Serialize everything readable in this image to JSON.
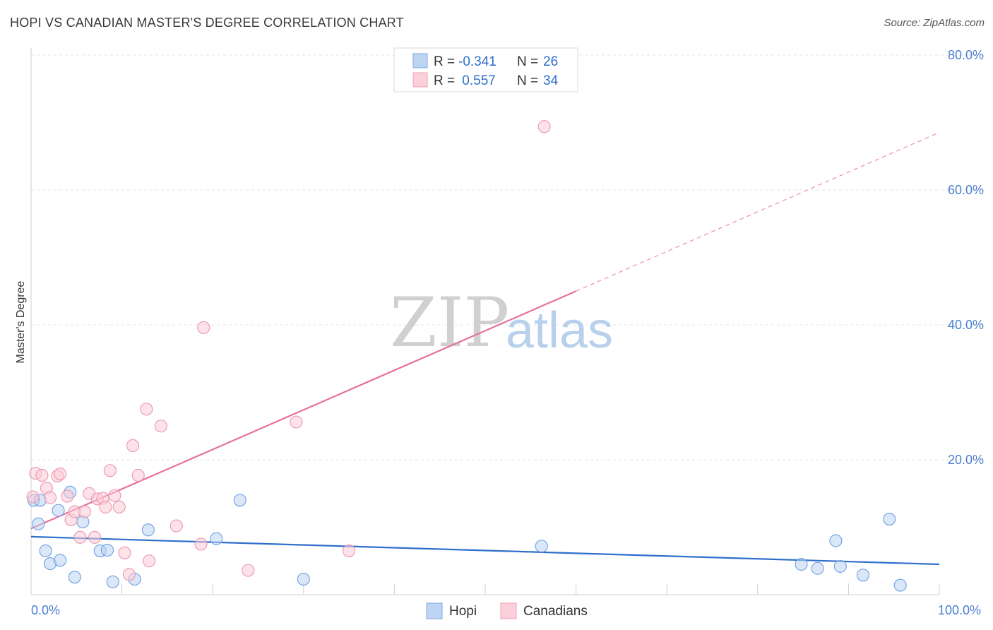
{
  "title": "HOPI VS CANADIAN MASTER'S DEGREE CORRELATION CHART",
  "source": "Source: ZipAtlas.com",
  "watermark": {
    "zip": "ZIP",
    "atlas": "atlas"
  },
  "legend": {
    "rows": [
      {
        "name": "Hopi",
        "r_label": "R =",
        "r_value": "-0.341",
        "n_label": "N =",
        "n_value": "26"
      },
      {
        "name": "Canadians",
        "r_label": "R =",
        "r_value": " 0.557",
        "n_label": "N =",
        "n_value": "34"
      }
    ]
  },
  "chart_data": {
    "type": "scatter",
    "title": "HOPI VS CANADIAN MASTER'S DEGREE CORRELATION CHART",
    "xlabel": "",
    "ylabel": "Master's Degree",
    "xlim": [
      0,
      100
    ],
    "ylim": [
      0,
      80
    ],
    "x_tick_labels": [
      "0.0%",
      "100.0%"
    ],
    "y_ticks": [
      20,
      40,
      60,
      80
    ],
    "y_tick_labels": [
      "20.0%",
      "40.0%",
      "60.0%",
      "80.0%"
    ],
    "grid": true,
    "legend_position": "top-center",
    "colors": {
      "Hopi": "#a8c8f0",
      "Hopi_line": "#2f6fcc",
      "Canadians": "#f8bccb",
      "Canadians_line": "#e8709a"
    },
    "series": [
      {
        "name": "Hopi",
        "points": [
          [
            0.3,
            14
          ],
          [
            1,
            14
          ],
          [
            0.8,
            10.5
          ],
          [
            1.6,
            6.5
          ],
          [
            2.1,
            4.6
          ],
          [
            3.2,
            5.1
          ],
          [
            3,
            12.5
          ],
          [
            4.3,
            15.2
          ],
          [
            4.8,
            2.6
          ],
          [
            5.7,
            10.8
          ],
          [
            7.6,
            6.5
          ],
          [
            8.4,
            6.6
          ],
          [
            9,
            1.9
          ],
          [
            11.4,
            2.3
          ],
          [
            12.9,
            9.6
          ],
          [
            20.4,
            8.3
          ],
          [
            23,
            14
          ],
          [
            30,
            2.3
          ],
          [
            56.2,
            7.2
          ],
          [
            84.8,
            4.5
          ],
          [
            86.6,
            3.9
          ],
          [
            88.6,
            8
          ],
          [
            89.1,
            4.2
          ],
          [
            91.6,
            2.9
          ],
          [
            94.5,
            11.2
          ],
          [
            95.7,
            1.4
          ]
        ],
        "trend": {
          "x0": 0,
          "y0": 8.6,
          "x1": 100,
          "y1": 4.5
        }
      },
      {
        "name": "Canadians",
        "points": [
          [
            0.2,
            14.5
          ],
          [
            0.5,
            18
          ],
          [
            1.2,
            17.7
          ],
          [
            1.7,
            15.8
          ],
          [
            2.1,
            14.4
          ],
          [
            2.9,
            17.6
          ],
          [
            3.2,
            17.9
          ],
          [
            4,
            14.6
          ],
          [
            4.4,
            11.1
          ],
          [
            4.8,
            12.3
          ],
          [
            5.4,
            8.5
          ],
          [
            5.9,
            12.3
          ],
          [
            6.4,
            15
          ],
          [
            7,
            8.5
          ],
          [
            7.3,
            14.2
          ],
          [
            7.9,
            14.3
          ],
          [
            8.2,
            13
          ],
          [
            8.7,
            18.4
          ],
          [
            9.2,
            14.7
          ],
          [
            9.7,
            13
          ],
          [
            10.3,
            6.2
          ],
          [
            10.8,
            3
          ],
          [
            11.2,
            22.1
          ],
          [
            11.8,
            17.7
          ],
          [
            12.7,
            27.5
          ],
          [
            13,
            5
          ],
          [
            14.3,
            25
          ],
          [
            16,
            10.2
          ],
          [
            18.7,
            7.5
          ],
          [
            19,
            39.6
          ],
          [
            23.9,
            3.6
          ],
          [
            29.2,
            25.6
          ],
          [
            35,
            6.5
          ],
          [
            56.5,
            69.4
          ]
        ],
        "trend": {
          "x0": 0,
          "y0": 9.8,
          "x1": 60,
          "y1": 45,
          "dash_x1": 99.6,
          "dash_y1": 68.3
        }
      }
    ]
  }
}
